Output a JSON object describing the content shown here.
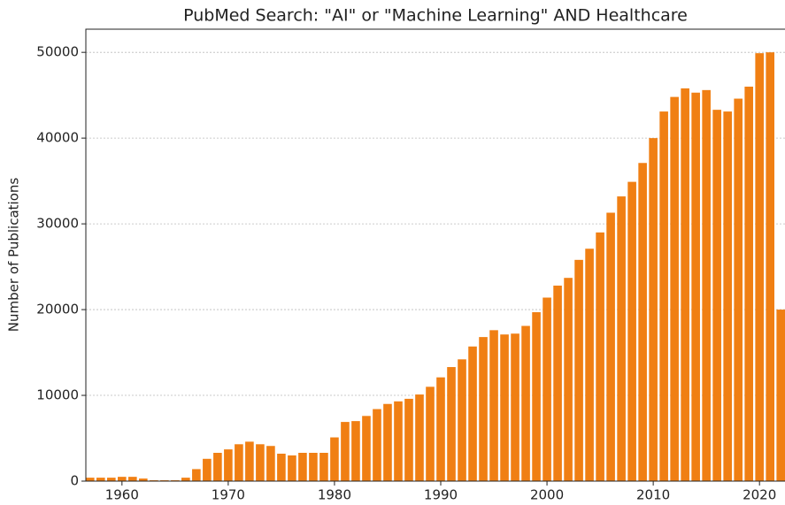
{
  "chart_data": {
    "type": "bar",
    "title": "PubMed Search: \"AI\" or \"Machine Learning\" AND Healthcare",
    "y_label": "Number of Publications",
    "x": [
      1957,
      1958,
      1959,
      1960,
      1961,
      1962,
      1963,
      1964,
      1965,
      1966,
      1967,
      1968,
      1969,
      1970,
      1971,
      1972,
      1973,
      1974,
      1975,
      1976,
      1977,
      1978,
      1979,
      1980,
      1981,
      1982,
      1983,
      1984,
      1985,
      1986,
      1987,
      1988,
      1989,
      1990,
      1991,
      1992,
      1993,
      1994,
      1995,
      1996,
      1997,
      1998,
      1999,
      2000,
      2001,
      2002,
      2003,
      2004,
      2005,
      2006,
      2007,
      2008,
      2009,
      2010,
      2011,
      2012,
      2013,
      2014,
      2015,
      2016,
      2017,
      2018,
      2019,
      2020,
      2021,
      2022
    ],
    "values": [
      400,
      400,
      400,
      500,
      500,
      300,
      100,
      100,
      100,
      400,
      1400,
      2600,
      3300,
      3700,
      4300,
      4600,
      4300,
      4100,
      3200,
      3000,
      3300,
      3300,
      3300,
      5100,
      6900,
      7000,
      7600,
      8400,
      9000,
      9300,
      9600,
      10100,
      11000,
      12100,
      13300,
      14200,
      15700,
      16800,
      17600,
      17100,
      17200,
      18100,
      19700,
      21400,
      22800,
      23700,
      25800,
      27100,
      29000,
      31300,
      33200,
      34900,
      37100,
      40000,
      43100,
      44800,
      45800,
      45300,
      45600,
      43300,
      43100,
      44600,
      46000,
      49900,
      50000,
      20000
    ],
    "color": "#f07f13",
    "xlim": [
      1956.6,
      2022.4
    ],
    "xticks": [
      1960,
      1970,
      1980,
      1990,
      2000,
      2010,
      2020
    ],
    "ylim": [
      0,
      52700
    ],
    "yticks": [
      0,
      10000,
      20000,
      30000,
      40000,
      50000
    ],
    "grid": true
  }
}
